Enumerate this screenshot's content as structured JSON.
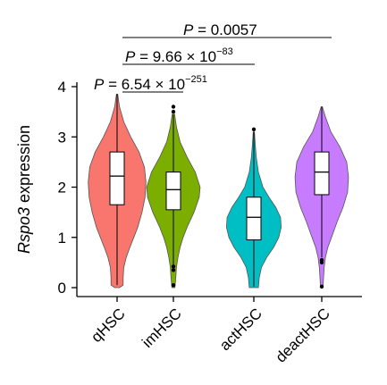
{
  "chart_data": {
    "type": "violin",
    "ylabel_italic": "Rspo3",
    "ylabel_rest": " expression",
    "yticks": [
      0,
      1,
      2,
      3,
      4
    ],
    "ylim": [
      -0.2,
      4.4
    ],
    "categories": [
      "qHSC",
      "imHSC",
      "actHSC",
      "deactHSC"
    ],
    "series": [
      {
        "name": "qHSC",
        "color": "#F8766D",
        "q1": 1.65,
        "median": 2.22,
        "q3": 2.7,
        "whisker_low": 0.05,
        "whisker_high": 3.85,
        "outliers": [],
        "density": [
          [
            0.0,
            0.08
          ],
          [
            0.05,
            0.2
          ],
          [
            0.2,
            0.2
          ],
          [
            0.4,
            0.22
          ],
          [
            0.6,
            0.3
          ],
          [
            0.8,
            0.42
          ],
          [
            1.0,
            0.55
          ],
          [
            1.2,
            0.68
          ],
          [
            1.5,
            0.82
          ],
          [
            1.8,
            0.92
          ],
          [
            2.1,
            0.95
          ],
          [
            2.4,
            0.9
          ],
          [
            2.7,
            0.72
          ],
          [
            3.0,
            0.45
          ],
          [
            3.3,
            0.22
          ],
          [
            3.6,
            0.08
          ],
          [
            3.85,
            0.02
          ]
        ]
      },
      {
        "name": "imHSC",
        "color": "#7CAE00",
        "q1": 1.55,
        "median": 1.95,
        "q3": 2.3,
        "whisker_low": 0.4,
        "whisker_high": 3.45,
        "outliers": [
          0.35,
          0.42,
          0.05,
          3.5,
          3.6
        ],
        "density": [
          [
            0.0,
            0.05
          ],
          [
            0.2,
            0.08
          ],
          [
            0.4,
            0.1
          ],
          [
            0.6,
            0.15
          ],
          [
            0.8,
            0.22
          ],
          [
            1.0,
            0.32
          ],
          [
            1.2,
            0.45
          ],
          [
            1.5,
            0.68
          ],
          [
            1.8,
            0.85
          ],
          [
            2.0,
            0.88
          ],
          [
            2.3,
            0.72
          ],
          [
            2.6,
            0.45
          ],
          [
            2.9,
            0.22
          ],
          [
            3.2,
            0.1
          ],
          [
            3.45,
            0.04
          ]
        ]
      },
      {
        "name": "actHSC",
        "color": "#00BFC4",
        "q1": 0.95,
        "median": 1.4,
        "q3": 1.8,
        "whisker_low": 0.02,
        "whisker_high": 3.1,
        "outliers": [
          3.15
        ],
        "density": [
          [
            0.0,
            0.15
          ],
          [
            0.2,
            0.18
          ],
          [
            0.4,
            0.25
          ],
          [
            0.6,
            0.42
          ],
          [
            0.8,
            0.65
          ],
          [
            1.0,
            0.82
          ],
          [
            1.2,
            0.9
          ],
          [
            1.4,
            0.88
          ],
          [
            1.6,
            0.72
          ],
          [
            1.8,
            0.5
          ],
          [
            2.0,
            0.3
          ],
          [
            2.3,
            0.15
          ],
          [
            2.6,
            0.08
          ],
          [
            2.9,
            0.04
          ],
          [
            3.1,
            0.02
          ]
        ]
      },
      {
        "name": "deactHSC",
        "color": "#C77CFF",
        "q1": 1.85,
        "median": 2.3,
        "q3": 2.7,
        "whisker_low": 0.6,
        "whisker_high": 3.6,
        "outliers": [
          0.5,
          0.55,
          0.02
        ],
        "density": [
          [
            0.0,
            0.04
          ],
          [
            0.2,
            0.06
          ],
          [
            0.4,
            0.08
          ],
          [
            0.6,
            0.12
          ],
          [
            0.8,
            0.2
          ],
          [
            1.0,
            0.32
          ],
          [
            1.3,
            0.5
          ],
          [
            1.6,
            0.7
          ],
          [
            1.9,
            0.85
          ],
          [
            2.2,
            0.88
          ],
          [
            2.5,
            0.82
          ],
          [
            2.8,
            0.6
          ],
          [
            3.1,
            0.3
          ],
          [
            3.4,
            0.12
          ],
          [
            3.6,
            0.02
          ]
        ]
      }
    ],
    "comparisons": [
      {
        "from": 0,
        "to": 1,
        "p_prefix": "P",
        "p_value": "6.54",
        "p_times": "× 10",
        "p_exp": "−251"
      },
      {
        "from": 0,
        "to": 2,
        "p_prefix": "P",
        "p_value": "9.66",
        "p_times": "× 10",
        "p_exp": "−83"
      },
      {
        "from": 0,
        "to": 3,
        "p_prefix": "P",
        "p_value": "0.0057",
        "p_times": "",
        "p_exp": ""
      }
    ]
  }
}
